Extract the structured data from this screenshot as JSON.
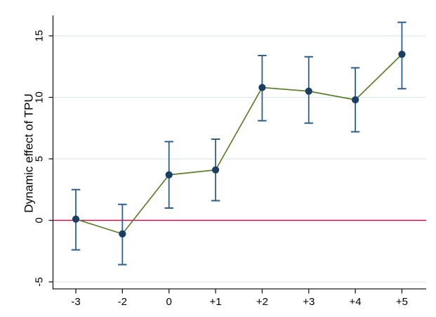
{
  "figure": {
    "background": "#ffffff",
    "title": ""
  },
  "chart_data": {
    "type": "line",
    "subtype": "event-study point estimates with 95% confidence interval error bars",
    "title": "",
    "xlabel": "",
    "ylabel": "Dynamic effect of TPU",
    "categories": [
      "-3",
      "-2",
      "0",
      "+1",
      "+2",
      "+3",
      "+4",
      "+5"
    ],
    "series": [
      {
        "name": "Dynamic effect of TPU",
        "values": [
          0.1,
          -1.1,
          3.7,
          4.1,
          10.8,
          10.5,
          9.8,
          13.5
        ],
        "ci_lower": [
          -2.4,
          -3.6,
          1.0,
          1.6,
          8.1,
          7.9,
          7.2,
          10.7
        ],
        "ci_upper": [
          2.5,
          1.3,
          6.4,
          6.6,
          13.4,
          13.3,
          12.4,
          16.1
        ]
      }
    ],
    "yticks": [
      -5,
      0,
      5,
      10,
      15
    ],
    "ylim": [
      -5.6,
      16.7
    ],
    "reference_line_y": 0,
    "grid": true,
    "legend_position": "none",
    "colors": {
      "marker": "#1b3f63",
      "error_bar": "#2e5f8c",
      "series_line": "#5d7e2d",
      "reference_line": "#c4174b",
      "gridline": "#ddeaeb",
      "axis": "#1a1a1a",
      "text": "#000000",
      "background": "#ffffff"
    }
  }
}
